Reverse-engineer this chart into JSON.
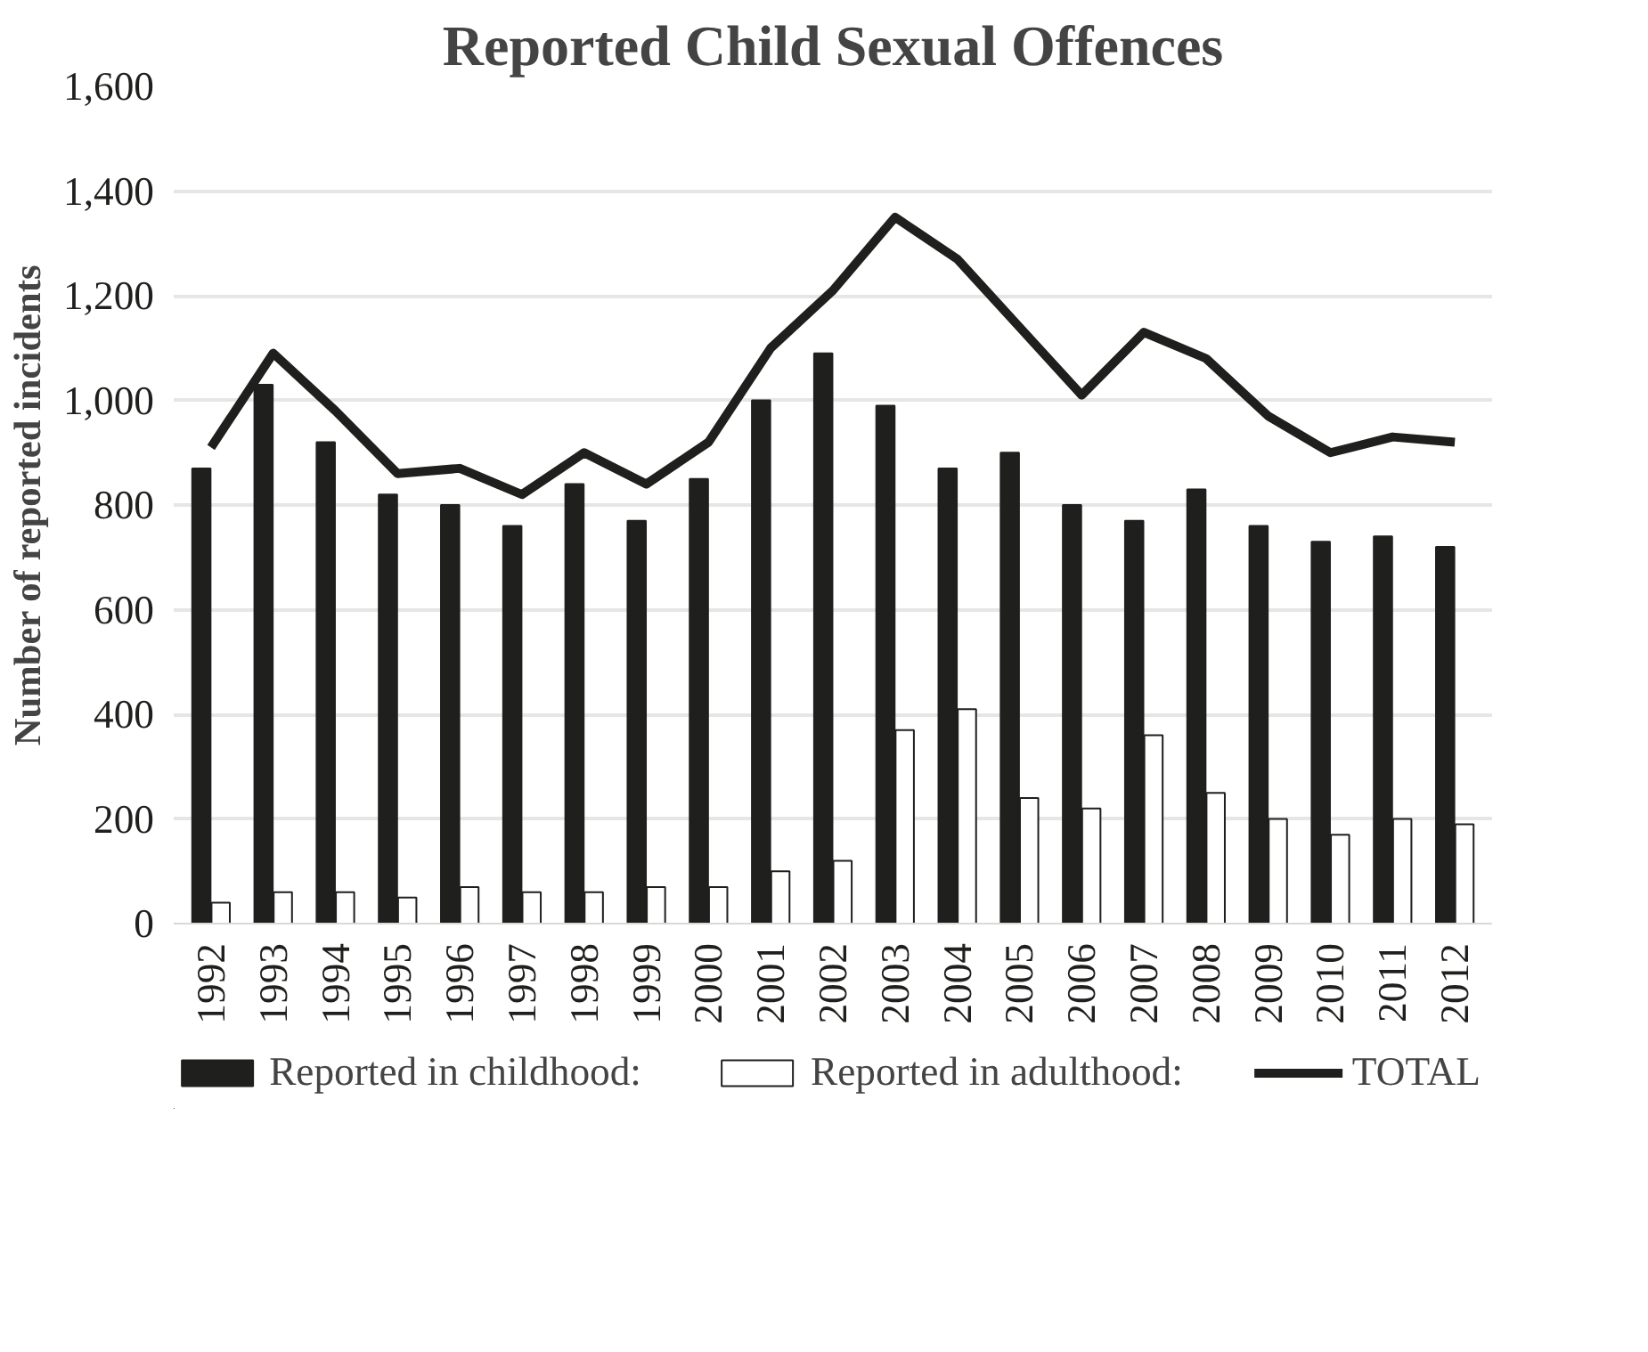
{
  "chart_data": {
    "type": "bar",
    "title": "Reported Child Sexual Offences",
    "ylabel": "Number of reported incidents",
    "categories": [
      "1992",
      "1993",
      "1994",
      "1995",
      "1996",
      "1997",
      "1998",
      "1999",
      "2000",
      "2001",
      "2002",
      "2003",
      "2004",
      "2005",
      "2006",
      "2007",
      "2008",
      "2009",
      "2010",
      "2011",
      "2012"
    ],
    "series": [
      {
        "name": "Reported in childhood:",
        "color": "#1f1f1d",
        "values": [
          870,
          1030,
          920,
          820,
          800,
          760,
          840,
          770,
          850,
          1000,
          1090,
          990,
          870,
          900,
          800,
          770,
          830,
          760,
          730,
          740,
          720
        ]
      },
      {
        "name": "Reported in adulthood:",
        "color": "#1f1f1d",
        "values": [
          40,
          60,
          60,
          50,
          70,
          60,
          60,
          70,
          70,
          100,
          120,
          370,
          410,
          240,
          220,
          360,
          250,
          200,
          170,
          200,
          190
        ]
      },
      {
        "name": "TOTAL",
        "type": "line",
        "color": "#1f1f1d",
        "values": [
          910,
          1090,
          980,
          860,
          870,
          820,
          900,
          840,
          920,
          1100,
          1210,
          1350,
          1270,
          1140,
          1010,
          1130,
          1080,
          970,
          900,
          930,
          920
        ]
      }
    ],
    "ylim": [
      0,
      1600
    ],
    "yticks": [
      {
        "value": 0,
        "label": "0"
      },
      {
        "value": 200,
        "label": "200"
      },
      {
        "value": 400,
        "label": "400"
      },
      {
        "value": 600,
        "label": "600"
      },
      {
        "value": 800,
        "label": "800"
      },
      {
        "value": 1000,
        "label": "1,000"
      },
      {
        "value": 1200,
        "label": "1,200"
      },
      {
        "value": 1400,
        "label": "1,400"
      },
      {
        "value": 1600,
        "label": "1,600"
      }
    ],
    "grid": "y",
    "legend": "bottom",
    "marker": "none",
    "line_style": "solid"
  }
}
